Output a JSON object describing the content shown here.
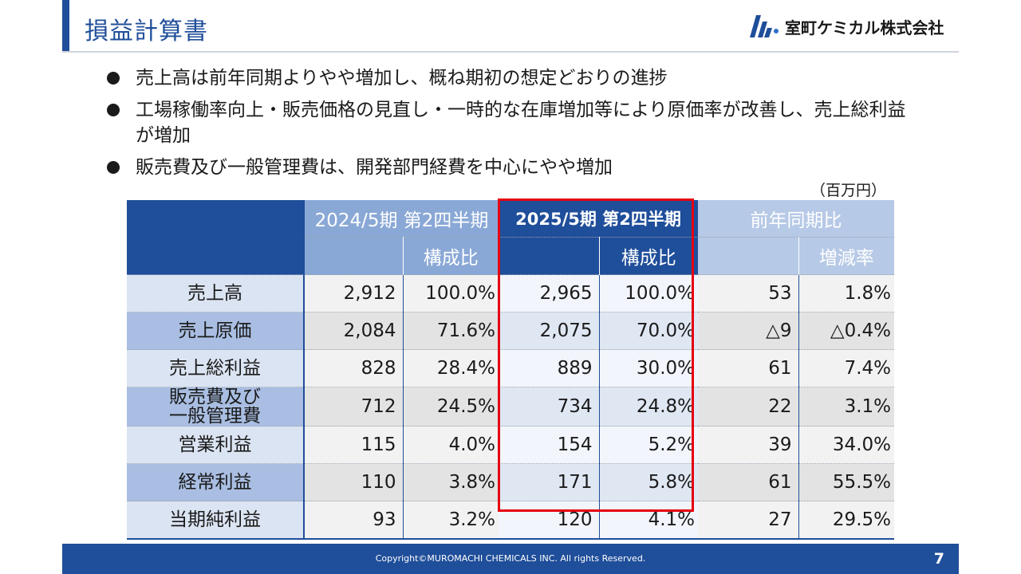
{
  "header": {
    "title": "損益計算書",
    "logo_text": "室町ケミカル株式会社",
    "brand_color": "#1f4e9a"
  },
  "bullets": [
    "売上高は前年同期よりやや増加し、概ね期初の想定どおりの進捗",
    "工場稼働率向上・販売価格の見直し・一時的な在庫増加等により原価率が改善し、売上総利益が増加",
    "販売費及び一般管理費は、開発部門経費を中心にやや増加"
  ],
  "unit": "（百万円）",
  "table": {
    "headers": {
      "prev": "2024/5期 第2四半期",
      "cur": "2025/5期 第2四半期",
      "yoy": "前年同期比",
      "ratio": "構成比",
      "change_rate": "増減率"
    },
    "rows": [
      {
        "label": "売上高",
        "prev": "2,912",
        "prev_ratio": "100.0%",
        "cur": "2,965",
        "cur_ratio": "100.0%",
        "diff": "53",
        "rate": "1.8%"
      },
      {
        "label": "売上原価",
        "prev": "2,084",
        "prev_ratio": "71.6%",
        "cur": "2,075",
        "cur_ratio": "70.0%",
        "diff": "△9",
        "rate": "△0.4%"
      },
      {
        "label": "売上総利益",
        "prev": "828",
        "prev_ratio": "28.4%",
        "cur": "889",
        "cur_ratio": "30.0%",
        "diff": "61",
        "rate": "7.4%"
      },
      {
        "label_line1": "販売費及び",
        "label_line2": "一般管理費",
        "prev": "712",
        "prev_ratio": "24.5%",
        "cur": "734",
        "cur_ratio": "24.8%",
        "diff": "22",
        "rate": "3.1%"
      },
      {
        "label": "営業利益",
        "prev": "115",
        "prev_ratio": "4.0%",
        "cur": "154",
        "cur_ratio": "5.2%",
        "diff": "39",
        "rate": "34.0%"
      },
      {
        "label": "経常利益",
        "prev": "110",
        "prev_ratio": "3.8%",
        "cur": "171",
        "cur_ratio": "5.8%",
        "diff": "61",
        "rate": "55.5%"
      },
      {
        "label": "当期純利益",
        "prev": "93",
        "prev_ratio": "3.2%",
        "cur": "120",
        "cur_ratio": "4.1%",
        "diff": "27",
        "rate": "29.5%"
      }
    ]
  },
  "footer": {
    "copyright": "Copyright©MUROMACHI CHEMICALS INC. All rights Reserved.",
    "page_number": "7"
  }
}
